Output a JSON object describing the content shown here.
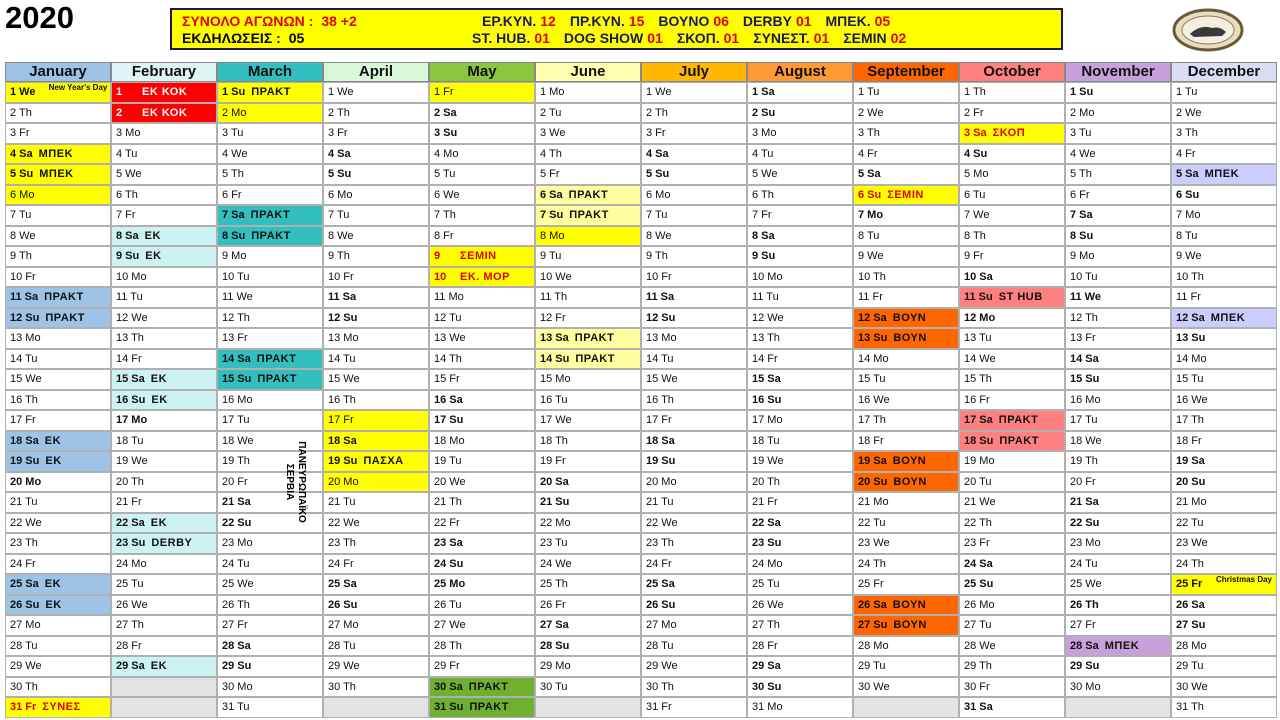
{
  "year": "2020",
  "header": {
    "total_label": "ΣΥΝΟΛΟ ΑΓΩΝΩΝ :",
    "total": "38 +2",
    "events_label": "ΕΚΔΗΛΩΣΕΙΣ :",
    "events": "05",
    "row1": [
      {
        "label": "ΕΡ.ΚΥΝ.",
        "value": "12"
      },
      {
        "label": "ΠΡ.ΚΥΝ.",
        "value": "15"
      },
      {
        "label": "ΒΟΥΝΟ",
        "value": "06"
      },
      {
        "label": "DERBY",
        "value": "01"
      },
      {
        "label": "ΜΠΕΚ.",
        "value": "05"
      }
    ],
    "row2": [
      {
        "label": "ST. HUB.",
        "value": "01"
      },
      {
        "label": "DOG SHOW",
        "value": "01"
      },
      {
        "label": "ΣΚΟΠ.",
        "value": "01"
      },
      {
        "label": "ΣΥΝΕΣΤ.",
        "value": "01"
      },
      {
        "label": "ΣΕΜΙΝ",
        "value": "02"
      }
    ]
  },
  "months": [
    {
      "name": "January",
      "color": "#9dc3e6",
      "days": [
        {
          "text": "1 We",
          "note": "New Year's Day",
          "fill": "#ffff00",
          "bold": true
        },
        "2 Th",
        "3 Fr",
        {
          "text": "4 Sa",
          "label": "ΜΠΕΚ",
          "fill": "#ffff00"
        },
        {
          "text": "5 Su",
          "label": "ΜΠΕΚ",
          "fill": "#ffff00"
        },
        {
          "text": "6 Mo",
          "fill": "#ffff00"
        },
        "7 Tu",
        "8 We",
        "9 Th",
        "10 Fr",
        {
          "text": "11 Sa",
          "label": "ΠΡΑΚΤ",
          "fill": "#9dc3e6"
        },
        {
          "text": "12 Su",
          "label": "ΠΡΑΚΤ",
          "fill": "#9dc3e6"
        },
        "13 Mo",
        "14 Tu",
        "15 We",
        "16 Th",
        "17 Fr",
        {
          "text": "18 Sa",
          "label": "ΕΚ",
          "fill": "#9dc3e6"
        },
        {
          "text": "19 Su",
          "label": "ΕΚ",
          "fill": "#9dc3e6"
        },
        {
          "text": "20 Mo",
          "bold": true
        },
        "21 Tu",
        "22 We",
        "23 Th",
        "24 Fr",
        {
          "text": "25 Sa",
          "label": "ΕΚ",
          "fill": "#9dc3e6"
        },
        {
          "text": "26 Su",
          "label": "ΕΚ",
          "fill": "#9dc3e6"
        },
        "27 Mo",
        "28 Tu",
        "29 We",
        "30 Th",
        {
          "text": "31 Fr",
          "label": "ΣΥΝΕΣ",
          "fill": "#ffff00",
          "color": "#e00000",
          "bold": true
        }
      ]
    },
    {
      "name": "February",
      "color": "#dff5f5",
      "days": [
        {
          "text": "1",
          "label": "ΕΚ ΚΟΚ",
          "fill": "#ff0000",
          "color": "#ffffff",
          "bold": true
        },
        {
          "text": "2",
          "label": "ΕΚ ΚΟΚ",
          "fill": "#ff0000",
          "color": "#ffffff",
          "bold": true
        },
        "3 Mo",
        "4 Tu",
        "5 We",
        "6 Th",
        "7 Fr",
        {
          "text": "8 Sa",
          "label": "ΕΚ",
          "fill": "#ccf2f2"
        },
        {
          "text": "9 Su",
          "label": "ΕΚ",
          "fill": "#ccf2f2"
        },
        "10 Mo",
        "11 Tu",
        "12 We",
        "13 Th",
        "14 Fr",
        {
          "text": "15 Sa",
          "label": "ΕΚ",
          "fill": "#ccf2f2"
        },
        {
          "text": "16 Su",
          "label": "ΕΚ",
          "fill": "#ccf2f2"
        },
        {
          "text": "17 Mo",
          "bold": true
        },
        "18 Tu",
        "19 We",
        "20 Th",
        "21 Fr",
        {
          "text": "22 Sa",
          "label": "ΕΚ",
          "fill": "#ccf2f2"
        },
        {
          "text": "23 Su",
          "label": "DERBY",
          "fill": "#ccf2f2"
        },
        "24 Mo",
        "25 Tu",
        "26 We",
        "27 Th",
        "28 Fr",
        {
          "text": "29 Sa",
          "label": "ΕΚ",
          "fill": "#ccf2f2"
        }
      ]
    },
    {
      "name": "March",
      "color": "#33bfbf",
      "side_note": [
        "ΠΑΝΕΥΡΩΠΑΪΚΟ",
        "ΣΕΡΒΙΑ"
      ],
      "days": [
        {
          "text": "1 Su",
          "label": "ΠΡΑΚΤ",
          "fill": "#ffff00"
        },
        {
          "text": "2 Mo",
          "fill": "#ffff00"
        },
        "3 Tu",
        "4 We",
        "5 Th",
        "6 Fr",
        {
          "text": "7 Sa",
          "label": "ΠΡΑΚΤ",
          "fill": "#33bfbf"
        },
        {
          "text": "8 Su",
          "label": "ΠΡΑΚΤ",
          "fill": "#33bfbf"
        },
        "9 Mo",
        "10 Tu",
        "11 We",
        "12 Th",
        "13 Fr",
        {
          "text": "14 Sa",
          "label": "ΠΡΑΚΤ",
          "fill": "#33bfbf"
        },
        {
          "text": "15 Su",
          "label": "ΠΡΑΚΤ",
          "fill": "#33bfbf"
        },
        "16 Mo",
        "17 Tu",
        "18 We",
        "19 Th",
        "20 Fr",
        "21 Sa",
        "22 Su",
        "23 Mo",
        "24 Tu",
        "25 We",
        "26 Th",
        "27 Fr",
        "28 Sa",
        "29 Su",
        "30 Mo",
        "31 Tu"
      ]
    },
    {
      "name": "April",
      "color": "#d9f7d9",
      "days": [
        "1 We",
        "2 Th",
        "3 Fr",
        "4 Sa",
        "5 Su",
        "6 Mo",
        "7 Tu",
        "8 We",
        "9 Th",
        "10 Fr",
        "11 Sa",
        "12 Su",
        "13 Mo",
        "14 Tu",
        "15 We",
        "16 Th",
        {
          "text": "17 Fr",
          "fill": "#ffff00"
        },
        {
          "text": "18 Sa",
          "fill": "#ffff00"
        },
        {
          "text": "19 Su",
          "label": "ΠΑΣΧΑ",
          "fill": "#ffff00"
        },
        {
          "text": "20 Mo",
          "fill": "#ffff00"
        },
        "21 Tu",
        "22 We",
        "23 Th",
        "24 Fr",
        "25 Sa",
        "26 Su",
        "27 Mo",
        "28 Tu",
        "29 We",
        "30 Th"
      ]
    },
    {
      "name": "May",
      "color": "#8cc63f",
      "days": [
        {
          "text": "1 Fr",
          "fill": "#ffff00"
        },
        "2 Sa",
        "3 Su",
        "4 Mo",
        "5 Tu",
        "6 We",
        "7 Th",
        "8 Fr",
        {
          "text": "9",
          "label": "ΣΕΜΙΝ",
          "fill": "#ffff00",
          "color": "#e00000",
          "bold": true
        },
        {
          "text": "10",
          "label": "ΕΚ. ΜΟΡ",
          "fill": "#ffff00",
          "color": "#e00000",
          "bold": true
        },
        "11 Mo",
        "12 Tu",
        "13 We",
        "14 Th",
        "15 Fr",
        "16 Sa",
        "17 Su",
        "18 Mo",
        "19 Tu",
        "20 We",
        "21 Th",
        "22 Fr",
        "23 Sa",
        "24 Su",
        {
          "text": "25 Mo",
          "bold": true
        },
        "26 Tu",
        "27 We",
        "28 Th",
        "29 Fr",
        {
          "text": "30 Sa",
          "label": "ΠΡΑΚΤ",
          "fill": "#70b030"
        },
        {
          "text": "31 Su",
          "label": "ΠΡΑΚΤ",
          "fill": "#70b030"
        }
      ]
    },
    {
      "name": "June",
      "color": "#ffffb0",
      "days": [
        "1 Mo",
        "2 Tu",
        "3 We",
        "4 Th",
        "5 Fr",
        {
          "text": "6 Sa",
          "label": "ΠΡΑΚΤ",
          "fill": "#ffffa0"
        },
        {
          "text": "7 Su",
          "label": "ΠΡΑΚΤ",
          "fill": "#ffffa0"
        },
        {
          "text": "8 Mo",
          "fill": "#ffff00"
        },
        "9 Tu",
        "10 We",
        "11 Th",
        "12 Fr",
        {
          "text": "13 Sa",
          "label": "ΠΡΑΚΤ",
          "fill": "#ffffa0"
        },
        {
          "text": "14 Su",
          "label": "ΠΡΑΚΤ",
          "fill": "#ffffa0"
        },
        "15 Mo",
        "16 Tu",
        "17 We",
        "18 Th",
        "19 Fr",
        "20 Sa",
        "21 Su",
        "22 Mo",
        "23 Tu",
        "24 We",
        "25 Th",
        "26 Fr",
        "27 Sa",
        "28 Su",
        "29 Mo",
        "30 Tu"
      ]
    },
    {
      "name": "July",
      "color": "#ffb800",
      "days": [
        "1 We",
        "2 Th",
        "3 Fr",
        "4 Sa",
        "5 Su",
        "6 Mo",
        "7 Tu",
        "8 We",
        "9 Th",
        "10 Fr",
        "11 Sa",
        "12 Su",
        "13 Mo",
        "14 Tu",
        "15 We",
        "16 Th",
        "17 Fr",
        "18 Sa",
        "19 Su",
        "20 Mo",
        "21 Tu",
        "22 We",
        "23 Th",
        "24 Fr",
        "25 Sa",
        "26 Su",
        "27 Mo",
        "28 Tu",
        "29 We",
        "30 Th",
        "31 Fr"
      ]
    },
    {
      "name": "August",
      "color": "#ff9933",
      "days": [
        "1 Sa",
        "2 Su",
        "3 Mo",
        "4 Tu",
        "5 We",
        "6 Th",
        "7 Fr",
        "8 Sa",
        "9 Su",
        "10 Mo",
        "11 Tu",
        "12 We",
        "13 Th",
        "14 Fr",
        "15 Sa",
        "16 Su",
        "17 Mo",
        "18 Tu",
        "19 We",
        "20 Th",
        "21 Fr",
        "22 Sa",
        "23 Su",
        "24 Mo",
        "25 Tu",
        "26 We",
        "27 Th",
        "28 Fr",
        "29 Sa",
        "30 Su",
        "31 Mo"
      ]
    },
    {
      "name": "September",
      "color": "#ff6600",
      "days": [
        "1 Tu",
        "2 We",
        "3 Th",
        "4 Fr",
        "5 Sa",
        {
          "text": "6 Su",
          "label": "ΣΕΜΙΝ",
          "fill": "#ffff00",
          "color": "#e00000"
        },
        {
          "text": "7 Mo",
          "bold": true
        },
        "8 Tu",
        "9 We",
        "10 Th",
        "11 Fr",
        {
          "text": "12 Sa",
          "label": "ΒΟΥΝ",
          "fill": "#ff6600"
        },
        {
          "text": "13 Su",
          "label": "ΒΟΥΝ",
          "fill": "#ff6600"
        },
        "14 Mo",
        "15 Tu",
        "16 We",
        "17 Th",
        "18 Fr",
        {
          "text": "19 Sa",
          "label": "ΒΟΥΝ",
          "fill": "#ff6600"
        },
        {
          "text": "20 Su",
          "label": "ΒΟΥΝ",
          "fill": "#ff6600"
        },
        "21 Mo",
        "22 Tu",
        "23 We",
        "24 Th",
        "25 Fr",
        {
          "text": "26 Sa",
          "label": "ΒΟΥΝ",
          "fill": "#ff6600"
        },
        {
          "text": "27 Su",
          "label": "ΒΟΥΝ",
          "fill": "#ff6600"
        },
        "28 Mo",
        "29 Tu",
        "30 We"
      ]
    },
    {
      "name": "October",
      "color": "#ff8080",
      "days": [
        "1 Th",
        "2 Fr",
        {
          "text": "3 Sa",
          "label": "ΣΚΟΠ",
          "fill": "#ffff00",
          "color": "#e00000"
        },
        "4 Su",
        "5 Mo",
        "6 Tu",
        "7 We",
        "8 Th",
        "9 Fr",
        "10 Sa",
        {
          "text": "11 Su",
          "label": "ST HUB",
          "fill": "#ff8080"
        },
        {
          "text": "12 Mo",
          "bold": true
        },
        "13 Tu",
        "14 We",
        "15 Th",
        "16 Fr",
        {
          "text": "17 Sa",
          "label": "ΠΡΑΚΤ",
          "fill": "#ff8080"
        },
        {
          "text": "18 Su",
          "label": "ΠΡΑΚΤ",
          "fill": "#ff8080"
        },
        "19 Mo",
        "20 Tu",
        "21 We",
        "22 Th",
        "23 Fr",
        "24 Sa",
        "25 Su",
        "26 Mo",
        "27 Tu",
        "28 We",
        "29 Th",
        "30 Fr",
        "31 Sa"
      ]
    },
    {
      "name": "November",
      "color": "#c9a0dc",
      "days": [
        "1 Su",
        "2 Mo",
        "3 Tu",
        "4 We",
        "5 Th",
        "6 Fr",
        "7 Sa",
        "8 Su",
        "9 Mo",
        "10 Tu",
        {
          "text": "11 We",
          "bold": true
        },
        "12 Th",
        "13 Fr",
        "14 Sa",
        "15 Su",
        "16 Mo",
        "17 Tu",
        "18 We",
        "19 Th",
        "20 Fr",
        "21 Sa",
        "22 Su",
        "23 Mo",
        "24 Tu",
        "25 We",
        {
          "text": "26 Th",
          "bold": true
        },
        "27 Fr",
        {
          "text": "28 Sa",
          "label": "ΜΠΕΚ",
          "fill": "#c9a0dc"
        },
        "29 Su",
        "30 Mo"
      ]
    },
    {
      "name": "December",
      "color": "#dcdcf5",
      "days": [
        "1 Tu",
        "2 We",
        "3 Th",
        "4 Fr",
        {
          "text": "5 Sa",
          "label": "ΜΠΕΚ",
          "fill": "#ccccff"
        },
        "6 Su",
        "7 Mo",
        "8 Tu",
        "9 We",
        "10 Th",
        "11 Fr",
        {
          "text": "12 Sa",
          "label": "ΜΠΕΚ",
          "fill": "#ccccff"
        },
        "13 Su",
        "14 Mo",
        "15 Tu",
        "16 We",
        "17 Th",
        "18 Fr",
        "19 Sa",
        "20 Su",
        "21 Mo",
        "22 Tu",
        "23 We",
        "24 Th",
        {
          "text": "25 Fr",
          "note": "Christmas Day",
          "fill": "#ffff00",
          "bold": true
        },
        "26 Sa",
        "27 Su",
        "28 Mo",
        "29 Tu",
        "30 We",
        "31 Th"
      ]
    }
  ]
}
